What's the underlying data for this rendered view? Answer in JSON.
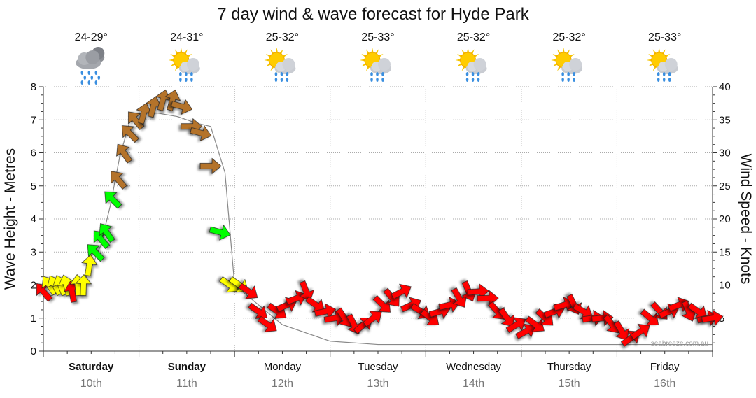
{
  "chart_data": {
    "type": "line",
    "title": "7 day wind & wave forecast for Hyde Park",
    "ylabel": "Wave Height - Metres",
    "y2label": "Wind Speed - Knots",
    "ylim": [
      0,
      8
    ],
    "y2lim": [
      0,
      40
    ],
    "yticks": [
      "0",
      "1",
      "2",
      "3",
      "4",
      "5",
      "6",
      "7",
      "8"
    ],
    "y2ticks": [
      "40",
      "35",
      "30",
      "25",
      "20",
      "15",
      "10",
      "5"
    ],
    "grid": true,
    "days": [
      {
        "name": "Saturday",
        "date": "10th",
        "bold": true,
        "temp": "24-29°",
        "weather": "rain-cloud-icon"
      },
      {
        "name": "Sunday",
        "date": "11th",
        "bold": true,
        "temp": "24-31°",
        "weather": "sun-shower-icon"
      },
      {
        "name": "Monday",
        "date": "12th",
        "bold": false,
        "temp": "25-32°",
        "weather": "sun-shower-icon"
      },
      {
        "name": "Tuesday",
        "date": "13th",
        "bold": false,
        "temp": "25-33°",
        "weather": "sun-shower-icon"
      },
      {
        "name": "Wednesday",
        "date": "14th",
        "bold": false,
        "temp": "25-32°",
        "weather": "sun-shower-icon"
      },
      {
        "name": "Thursday",
        "date": "15th",
        "bold": false,
        "temp": "25-32°",
        "weather": "sun-shower-icon"
      },
      {
        "name": "Friday",
        "date": "16th",
        "bold": false,
        "temp": "25-33°",
        "weather": "sun-shower-icon"
      }
    ],
    "series": [
      {
        "name": "Wind Speed",
        "axis": "y2",
        "unit": "knots",
        "x": [
          0.0,
          0.06,
          0.12,
          0.18,
          0.24,
          0.3,
          0.36,
          0.42,
          0.48,
          0.54,
          0.6,
          0.66,
          0.72,
          0.78,
          0.84,
          0.9,
          0.96,
          1.05,
          1.15,
          1.25,
          1.35,
          1.45,
          1.55,
          1.65,
          1.75,
          1.85,
          1.95,
          2.05,
          2.15,
          2.25,
          2.35,
          2.45,
          2.55,
          2.65,
          2.75,
          2.85,
          2.95,
          3.05,
          3.15,
          3.25,
          3.35,
          3.45,
          3.55,
          3.65,
          3.75,
          3.85,
          3.95,
          4.05,
          4.15,
          4.25,
          4.35,
          4.45,
          4.55,
          4.65,
          4.75,
          4.85,
          4.95,
          5.05,
          5.15,
          5.25,
          5.35,
          5.45,
          5.55,
          5.65,
          5.75,
          5.85,
          5.95,
          6.05,
          6.15,
          6.25,
          6.35,
          6.45,
          6.55,
          6.65,
          6.75,
          6.85,
          6.95,
          7.0
        ],
        "values": [
          9,
          10,
          10,
          10,
          10,
          9,
          10,
          10,
          13,
          15,
          17,
          18,
          23,
          26,
          30,
          33,
          35,
          36,
          37,
          38,
          38,
          37,
          34,
          33,
          28,
          18,
          10,
          10,
          9,
          6,
          4,
          6,
          7,
          8,
          9,
          7,
          6,
          5,
          5,
          4,
          4,
          5,
          7,
          8,
          9,
          7,
          6,
          5,
          6,
          7,
          8,
          9,
          9,
          8,
          6,
          5,
          4,
          3,
          4,
          5,
          6,
          7,
          7,
          6,
          5,
          5,
          4,
          3,
          2,
          3,
          5,
          6,
          6,
          7,
          6,
          6,
          5,
          5
        ]
      },
      {
        "name": "Wave Height",
        "axis": "y",
        "unit": "metres",
        "x": [
          0.0,
          0.2,
          0.4,
          0.5,
          0.6,
          0.7,
          0.8,
          0.9,
          1.0,
          1.2,
          1.4,
          1.6,
          1.75,
          1.9,
          2.0,
          2.5,
          3.0,
          3.5,
          4.0,
          4.5,
          5.0,
          5.5,
          6.0,
          6.5,
          7.0
        ],
        "values": [
          1.6,
          1.8,
          2.0,
          2.5,
          3.2,
          4.4,
          5.9,
          6.9,
          7.2,
          7.2,
          7.1,
          6.9,
          6.8,
          5.4,
          2.0,
          0.8,
          0.3,
          0.2,
          0.2,
          0.2,
          0.2,
          0.2,
          0.2,
          0.2,
          0.2
        ]
      }
    ],
    "watermark": "seabreeze.com.au",
    "colors": {
      "wind_lt10": "#ff0000",
      "wind_10_15": "#ffff00",
      "wind_15_25": "#00ff00",
      "wind_gt25": "#b4732a",
      "grid": "#aaaaaa",
      "axis": "#333333",
      "wave_line": "#888888"
    }
  }
}
